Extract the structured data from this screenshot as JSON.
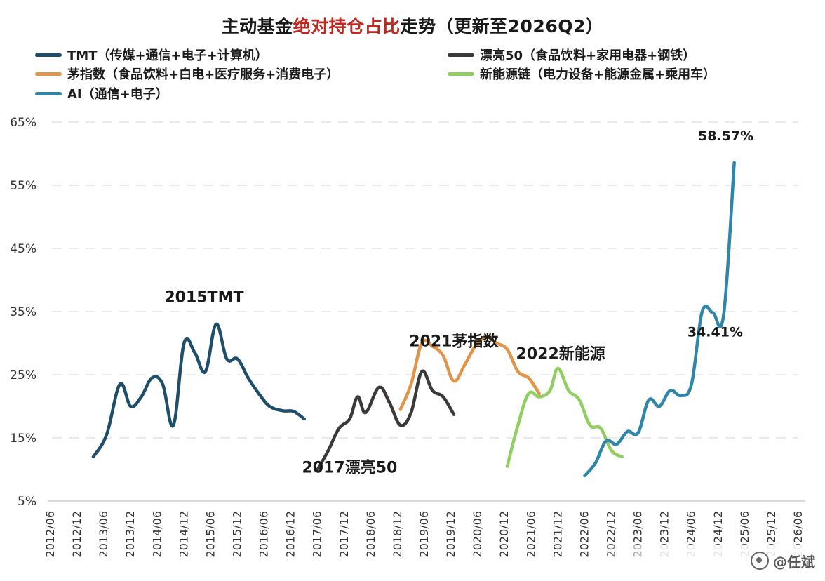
{
  "title": {
    "part1": "主动基金",
    "part2": "绝对持仓占比",
    "part3": "走势（更新至2026Q2）"
  },
  "legend": [
    {
      "label": "TMT（传媒+通信+电子+计算机）",
      "color": "#1f4e6b"
    },
    {
      "label": "漂亮50（食品饮料+家用电器+钢铁）",
      "color": "#3a3a3a"
    },
    {
      "label": "茅指数（食品饮料+白电+医疗服务+消费电子）",
      "color": "#e0954a"
    },
    {
      "label": "新能源链（电力设备+能源金属+乘用车）",
      "color": "#8fce5f"
    },
    {
      "label": "AI（通信+电子）",
      "color": "#2f86a8"
    }
  ],
  "watermark": "@任斌",
  "chart_data": {
    "type": "line",
    "ylim": [
      5,
      65
    ],
    "y_ticks": [
      "5%",
      "15%",
      "25%",
      "35%",
      "45%",
      "55%",
      "65%"
    ],
    "x_ticks": [
      "2012/06",
      "2012/12",
      "2013/06",
      "2013/12",
      "2014/06",
      "2014/12",
      "2015/06",
      "2015/12",
      "2016/06",
      "2016/12",
      "2017/06",
      "2017/12",
      "2018/06",
      "2018/12",
      "2019/06",
      "2019/12",
      "2020/06",
      "2020/12",
      "2021/06",
      "2021/12",
      "2022/06",
      "2022/12",
      "2023/06",
      "2023/12",
      "2024/06",
      "2024/12",
      "2025/06",
      "2025/12",
      "2026/06"
    ],
    "series": [
      {
        "name": "TMT（传媒+通信+电子+计算机）",
        "color": "#1f4e6b",
        "points": [
          [
            1.6,
            12
          ],
          [
            2.1,
            15.5
          ],
          [
            2.6,
            23.5
          ],
          [
            3.0,
            20
          ],
          [
            3.4,
            21.5
          ],
          [
            3.8,
            24.5
          ],
          [
            4.2,
            23.5
          ],
          [
            4.6,
            17
          ],
          [
            5.0,
            30
          ],
          [
            5.4,
            28.5
          ],
          [
            5.8,
            25.5
          ],
          [
            6.2,
            33
          ],
          [
            6.6,
            27.5
          ],
          [
            7.0,
            27.5
          ],
          [
            7.4,
            24.5
          ],
          [
            7.8,
            22
          ],
          [
            8.2,
            20
          ],
          [
            8.7,
            19.3
          ],
          [
            9.1,
            19.2
          ],
          [
            9.5,
            18
          ]
        ]
      },
      {
        "name": "漂亮50（食品饮料+家用电器+钢铁）",
        "color": "#3a3a3a",
        "points": [
          [
            10.0,
            10
          ],
          [
            10.4,
            13
          ],
          [
            10.8,
            16.5
          ],
          [
            11.2,
            18
          ],
          [
            11.5,
            21.5
          ],
          [
            11.8,
            19
          ],
          [
            12.3,
            23
          ],
          [
            12.7,
            20.5
          ],
          [
            13.1,
            17
          ],
          [
            13.5,
            19
          ],
          [
            13.9,
            25.5
          ],
          [
            14.3,
            22.5
          ],
          [
            14.7,
            21.5
          ],
          [
            15.1,
            18.7
          ]
        ]
      },
      {
        "name": "茅指数（食品饮料+白电+医疗服务+消费电子）",
        "color": "#e0954a",
        "points": [
          [
            13.1,
            19.5
          ],
          [
            13.5,
            23.5
          ],
          [
            13.9,
            30
          ],
          [
            14.3,
            29.5
          ],
          [
            14.7,
            28
          ],
          [
            15.1,
            24
          ],
          [
            15.5,
            26.5
          ],
          [
            15.9,
            29.5
          ],
          [
            16.3,
            31
          ],
          [
            16.7,
            30
          ],
          [
            17.1,
            29
          ],
          [
            17.5,
            25.5
          ],
          [
            17.9,
            24.5
          ],
          [
            18.3,
            22
          ]
        ]
      },
      {
        "name": "新能源链（电力设备+能源金属+乘用车）",
        "color": "#8fce5f",
        "points": [
          [
            17.1,
            10.5
          ],
          [
            17.5,
            17
          ],
          [
            17.9,
            22
          ],
          [
            18.3,
            21.5
          ],
          [
            18.7,
            22.5
          ],
          [
            19.0,
            26
          ],
          [
            19.4,
            22.5
          ],
          [
            19.8,
            21
          ],
          [
            20.2,
            17
          ],
          [
            20.6,
            16.5
          ],
          [
            21.0,
            13
          ],
          [
            21.4,
            12
          ]
        ]
      },
      {
        "name": "AI（通信+电子）",
        "color": "#2f86a8",
        "points": [
          [
            20.0,
            9
          ],
          [
            20.4,
            11
          ],
          [
            20.8,
            14.5
          ],
          [
            21.2,
            14
          ],
          [
            21.6,
            16
          ],
          [
            22.0,
            15.8
          ],
          [
            22.4,
            21
          ],
          [
            22.8,
            20
          ],
          [
            23.2,
            22.5
          ],
          [
            23.6,
            21.7
          ],
          [
            24.0,
            23.5
          ],
          [
            24.4,
            35
          ],
          [
            24.8,
            34.8
          ],
          [
            25.2,
            34.41
          ],
          [
            25.6,
            58.57
          ]
        ]
      }
    ],
    "annotations": [
      {
        "text": "2015TMT",
        "x": 5.75,
        "y": 36.5
      },
      {
        "text": "2017漂亮50",
        "x": 11.2,
        "y": 9.5
      },
      {
        "text": "2021茅指数",
        "x": 15.1,
        "y": 29.5
      },
      {
        "text": "2022新能源",
        "x": 19.1,
        "y": 27.5
      }
    ],
    "value_labels": [
      {
        "text": "58.57%",
        "x": 25.6,
        "y": 58.57,
        "pos": "above"
      },
      {
        "text": "34.41%",
        "x": 25.2,
        "y": 34.41,
        "pos": "below"
      }
    ]
  }
}
